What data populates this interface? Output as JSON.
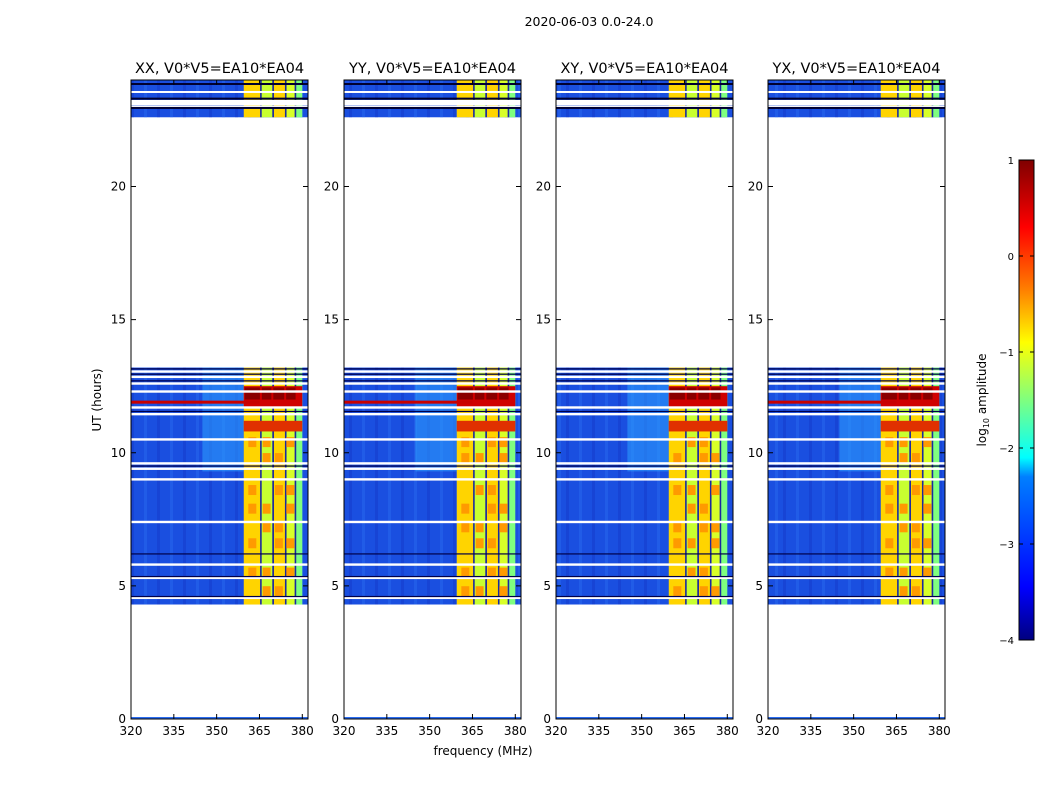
{
  "figure": {
    "suptitle": "2020-06-03 0.0-24.0"
  },
  "chart_data": {
    "type": "heatmap",
    "suptitle": "2020-06-03 0.0-24.0",
    "xlabel": "frequency (MHz)",
    "ylabel": "UT (hours)",
    "xlim": [
      320,
      382
    ],
    "ylim": [
      0,
      24
    ],
    "xticks": [
      "320",
      "335",
      "350",
      "365",
      "380"
    ],
    "yticks": [
      "0",
      "5",
      "10",
      "15",
      "20"
    ],
    "panels": [
      {
        "title": "XX, V0*V5=EA10*EA04"
      },
      {
        "title": "YY, V0*V5=EA10*EA04"
      },
      {
        "title": "XY, V0*V5=EA10*EA04"
      },
      {
        "title": "YX, V0*V5=EA10*EA04"
      }
    ],
    "data_time_ranges_hours": [
      [
        4.3,
        13.2
      ],
      [
        22.6,
        24.0
      ]
    ],
    "rfi_band_mhz": [
      359.5,
      380
    ],
    "colorbar": {
      "label": "log10 amplitude",
      "range": [
        -4,
        1
      ],
      "ticks": [
        "1",
        "0",
        "−1",
        "−2",
        "−3",
        "−4"
      ],
      "colormap": [
        "#00007f",
        "#0000ff",
        "#007fff",
        "#00ffff",
        "#7fff7f",
        "#ffff00",
        "#ff7f00",
        "#ff0000",
        "#7f0000"
      ]
    }
  }
}
